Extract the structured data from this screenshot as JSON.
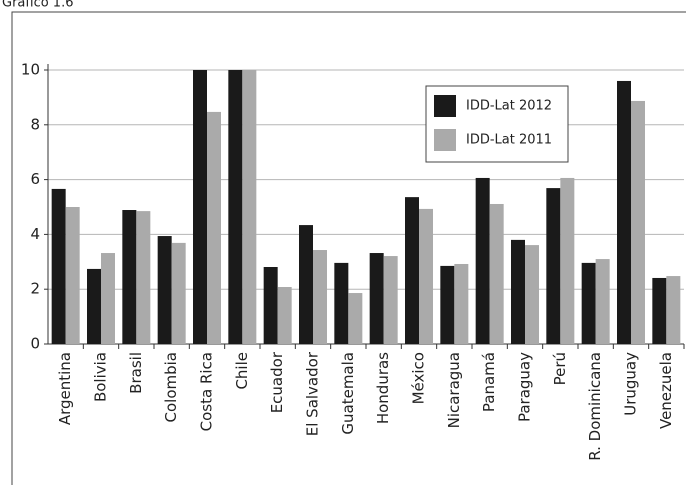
{
  "chart_data": {
    "type": "bar",
    "title": "Gráfico 1.6",
    "categories": [
      "Argentina",
      "Bolivia",
      "Brasil",
      "Colombia",
      "Costa Rica",
      "Chile",
      "Ecuador",
      "El Salvador",
      "Guatemala",
      "Honduras",
      "México",
      "Nicaragua",
      "Panamá",
      "Paraguay",
      "Perú",
      "R. Dominicana",
      "Uruguay",
      "Venezuela"
    ],
    "series": [
      {
        "name": "IDD-Lat 2012",
        "color": "#1a1a1a",
        "values": [
          5.66,
          2.74,
          4.89,
          3.94,
          10,
          10,
          2.81,
          4.34,
          2.96,
          3.32,
          5.36,
          2.85,
          6.06,
          3.8,
          5.69,
          2.96,
          9.6,
          2.41
        ]
      },
      {
        "name": "IDD-Lat 2011",
        "color": "#aaaaaa",
        "values": [
          5.0,
          3.32,
          4.85,
          3.69,
          8.47,
          10,
          2.08,
          3.43,
          1.86,
          3.21,
          4.93,
          2.92,
          5.11,
          3.61,
          6.06,
          3.1,
          8.87,
          2.48
        ]
      }
    ],
    "ylim": [
      0,
      10
    ],
    "yticks": [
      0,
      2,
      4,
      6,
      8,
      10
    ],
    "grid": true,
    "legend": "top-right"
  }
}
